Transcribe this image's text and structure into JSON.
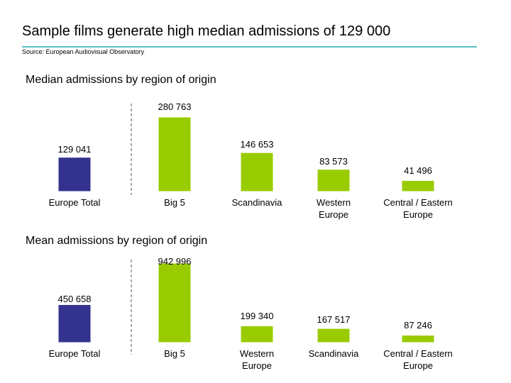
{
  "header": {
    "title": "Sample films generate high median admissions of 129 000",
    "source": "Source: European Audiovisual Observatory"
  },
  "colors": {
    "europe_total": "#33338f",
    "region": "#99cc00",
    "rule": "#5bbfc8"
  },
  "chart_data": [
    {
      "type": "bar",
      "title": "Median admissions by region of origin",
      "categories": [
        "Europe Total",
        "Big 5",
        "Scandinavia",
        "Western Europe",
        "Central / Eastern Europe"
      ],
      "category_lines": [
        [
          "Europe Total"
        ],
        [
          "Big 5"
        ],
        [
          "Scandinavia"
        ],
        [
          "Western",
          "Europe"
        ],
        [
          "Central / Eastern",
          "Europe"
        ]
      ],
      "values": [
        129041,
        280763,
        146653,
        83573,
        41496
      ],
      "value_labels": [
        "129 041",
        "280 763",
        "146 653",
        "83 573",
        "41 496"
      ],
      "ylim": [
        0,
        280763
      ],
      "grid": false,
      "legend": "none"
    },
    {
      "type": "bar",
      "title": "Mean admissions by region of origin",
      "categories": [
        "Europe Total",
        "Big 5",
        "Western Europe",
        "Scandinavia",
        "Central / Eastern Europe"
      ],
      "category_lines": [
        [
          "Europe Total"
        ],
        [
          "Big 5"
        ],
        [
          "Western",
          "Europe"
        ],
        [
          "Scandinavia"
        ],
        [
          "Central / Eastern",
          "Europe"
        ]
      ],
      "values": [
        450658,
        942996,
        199340,
        167517,
        87246
      ],
      "value_labels": [
        "450 658",
        "942  996",
        "199 340",
        "167 517",
        "87 246"
      ],
      "ylim": [
        0,
        942996
      ],
      "grid": false,
      "legend": "none"
    }
  ]
}
